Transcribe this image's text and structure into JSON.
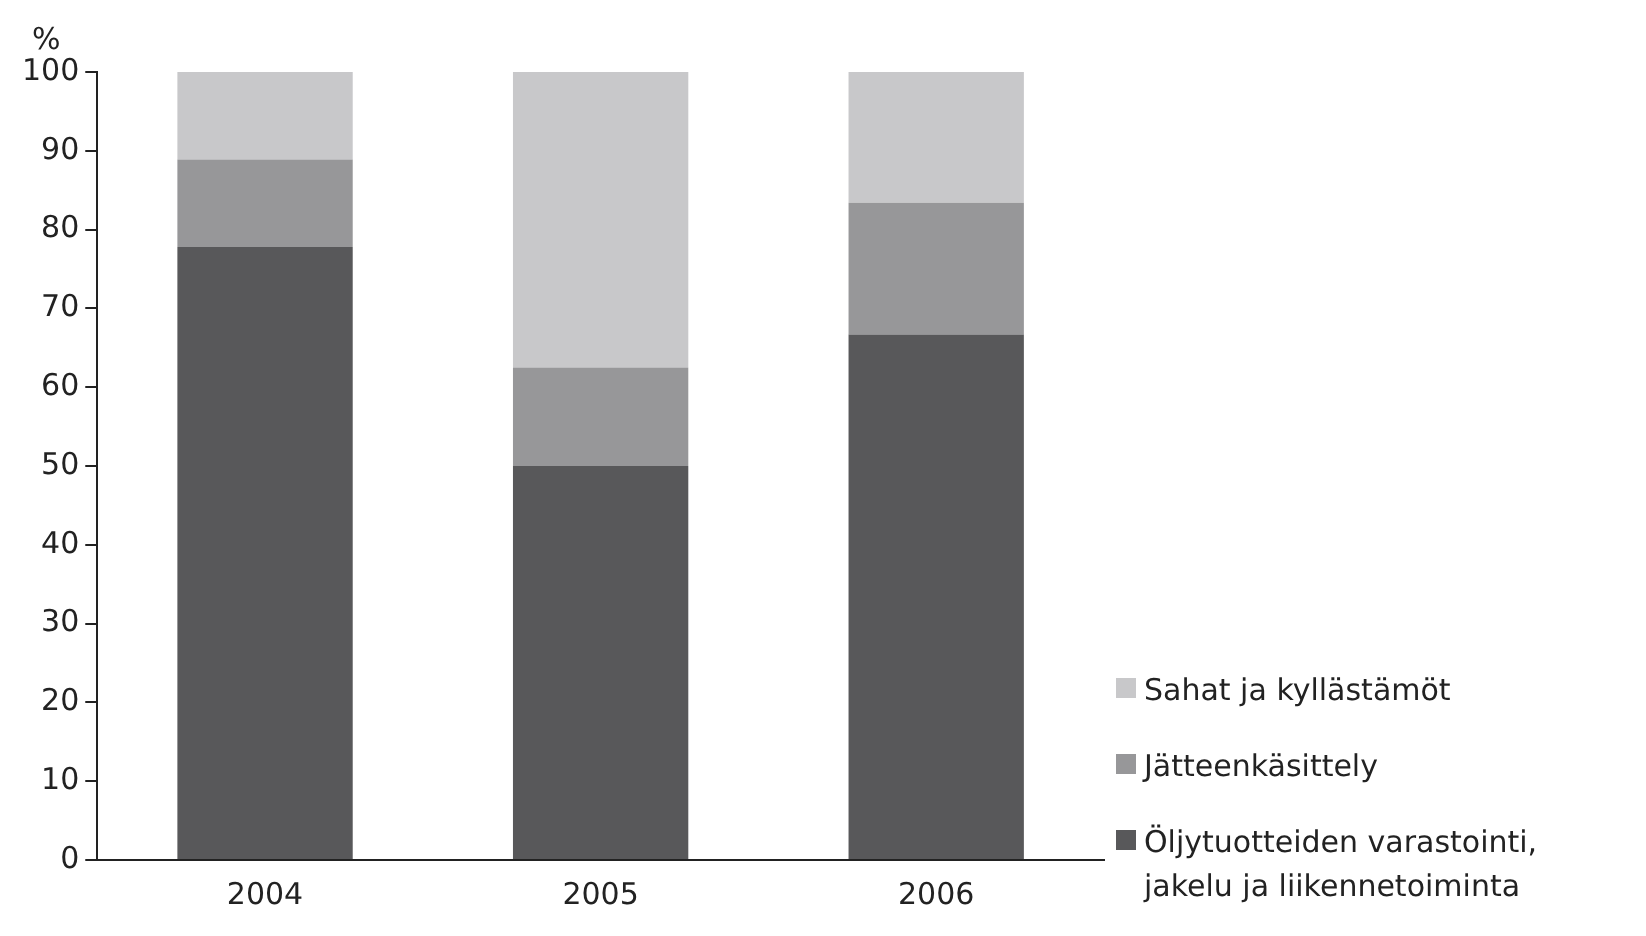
{
  "chart_data": {
    "type": "bar",
    "stacked": true,
    "ylabel": "%",
    "categories": [
      "2004",
      "2005",
      "2006"
    ],
    "series": [
      {
        "name": "Öljytuotteiden varastointi, jakelu ja liikennetoiminta",
        "color": "#58585a",
        "values": [
          77.8,
          50,
          66.7
        ]
      },
      {
        "name": "Jätteenkäsittely",
        "color": "#979799",
        "values": [
          11.1,
          12.5,
          16.7
        ]
      },
      {
        "name": "Sahat ja kyllästämöt",
        "color": "#c8c8ca",
        "values": [
          11.1,
          37.5,
          16.6
        ]
      }
    ],
    "ylim": [
      0,
      100
    ],
    "yticks": [
      0,
      10,
      20,
      30,
      40,
      50,
      60,
      70,
      80,
      90,
      100
    ],
    "grid": false,
    "legend": "bottom right"
  }
}
